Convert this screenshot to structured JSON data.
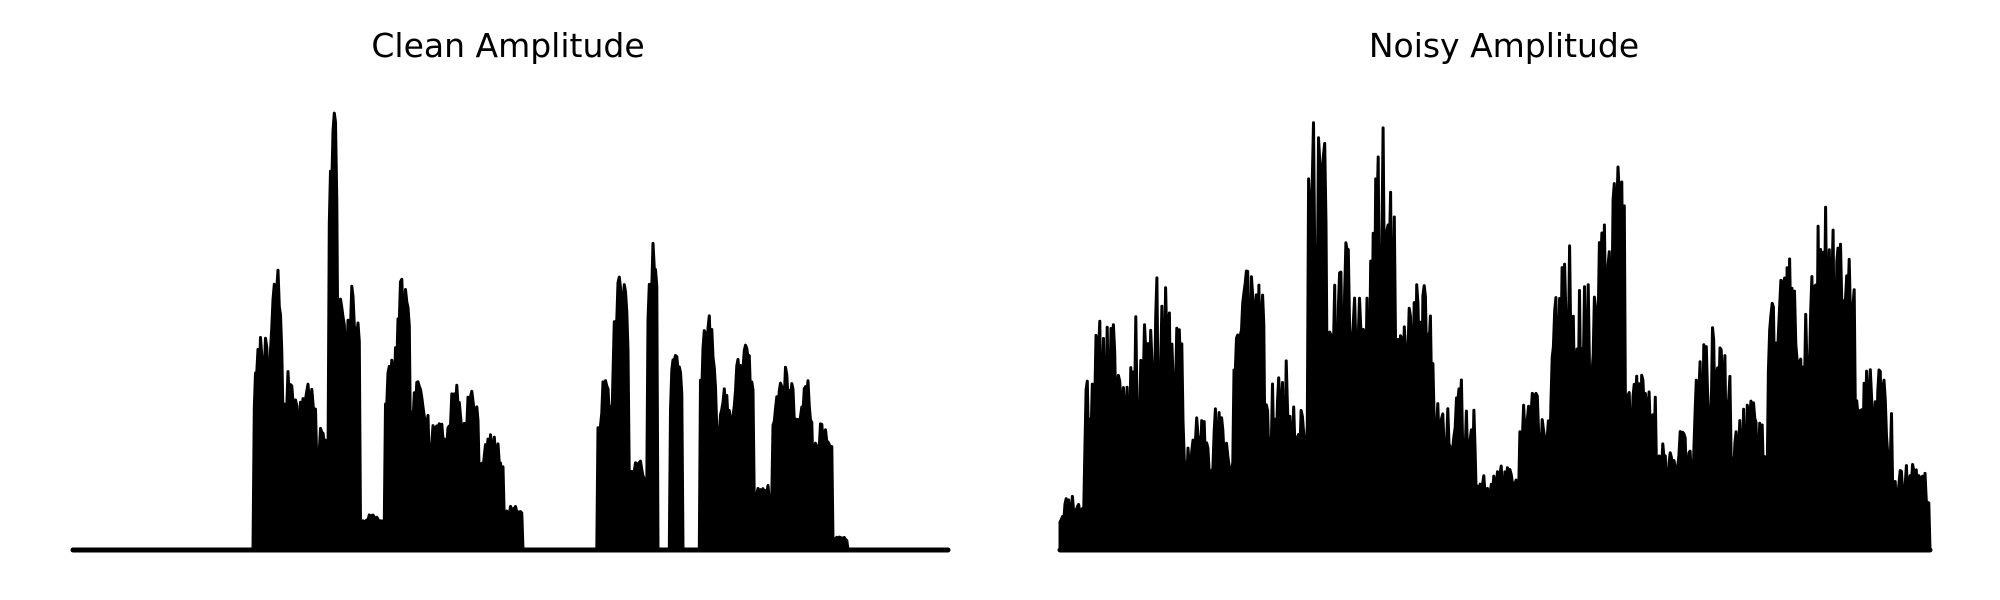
{
  "chart_data": [
    {
      "type": "area",
      "title": "Clean Amplitude",
      "xlabel": "",
      "ylabel": "",
      "axes": "off",
      "grid": false,
      "color": "#000000",
      "ylim": [
        0,
        1.0
      ],
      "n_samples": 700,
      "segments": [
        {
          "start": 0,
          "end": 145,
          "level": 0.0
        },
        {
          "start": 145,
          "end": 158,
          "level": 0.48
        },
        {
          "start": 158,
          "end": 168,
          "level": 0.63
        },
        {
          "start": 168,
          "end": 180,
          "level": 0.4
        },
        {
          "start": 180,
          "end": 195,
          "level": 0.38
        },
        {
          "start": 195,
          "end": 205,
          "level": 0.28
        },
        {
          "start": 205,
          "end": 212,
          "level": 1.0
        },
        {
          "start": 212,
          "end": 218,
          "level": 0.58
        },
        {
          "start": 218,
          "end": 230,
          "level": 0.58
        },
        {
          "start": 230,
          "end": 250,
          "level": 0.08
        },
        {
          "start": 250,
          "end": 258,
          "level": 0.44
        },
        {
          "start": 258,
          "end": 270,
          "level": 0.6
        },
        {
          "start": 270,
          "end": 285,
          "level": 0.38
        },
        {
          "start": 285,
          "end": 300,
          "level": 0.3
        },
        {
          "start": 300,
          "end": 312,
          "level": 0.37
        },
        {
          "start": 312,
          "end": 325,
          "level": 0.36
        },
        {
          "start": 325,
          "end": 345,
          "level": 0.25
        },
        {
          "start": 345,
          "end": 360,
          "level": 0.1
        },
        {
          "start": 360,
          "end": 420,
          "level": 0.0
        },
        {
          "start": 420,
          "end": 432,
          "level": 0.38
        },
        {
          "start": 432,
          "end": 445,
          "level": 0.62
        },
        {
          "start": 445,
          "end": 460,
          "level": 0.2
        },
        {
          "start": 460,
          "end": 468,
          "level": 0.7
        },
        {
          "start": 468,
          "end": 478,
          "level": 0.0
        },
        {
          "start": 478,
          "end": 488,
          "level": 0.48
        },
        {
          "start": 488,
          "end": 502,
          "level": 0.0
        },
        {
          "start": 502,
          "end": 515,
          "level": 0.52
        },
        {
          "start": 515,
          "end": 528,
          "level": 0.36
        },
        {
          "start": 528,
          "end": 545,
          "level": 0.46
        },
        {
          "start": 545,
          "end": 560,
          "level": 0.15
        },
        {
          "start": 560,
          "end": 580,
          "level": 0.4
        },
        {
          "start": 580,
          "end": 592,
          "level": 0.38
        },
        {
          "start": 592,
          "end": 608,
          "level": 0.28
        },
        {
          "start": 608,
          "end": 620,
          "level": 0.03
        },
        {
          "start": 620,
          "end": 700,
          "level": 0.0
        }
      ]
    },
    {
      "type": "area",
      "title": "Noisy Amplitude",
      "xlabel": "",
      "ylabel": "",
      "axes": "off",
      "grid": false,
      "color": "#000000",
      "ylim": [
        0,
        1.0
      ],
      "n_samples": 700,
      "segments": [
        {
          "start": 0,
          "end": 20,
          "level": 0.12
        },
        {
          "start": 20,
          "end": 55,
          "level": 0.48
        },
        {
          "start": 55,
          "end": 100,
          "level": 0.55
        },
        {
          "start": 100,
          "end": 140,
          "level": 0.3
        },
        {
          "start": 140,
          "end": 165,
          "level": 0.64
        },
        {
          "start": 165,
          "end": 200,
          "level": 0.38
        },
        {
          "start": 200,
          "end": 215,
          "level": 1.0
        },
        {
          "start": 215,
          "end": 250,
          "level": 0.62
        },
        {
          "start": 250,
          "end": 270,
          "level": 0.85
        },
        {
          "start": 270,
          "end": 305,
          "level": 0.55
        },
        {
          "start": 305,
          "end": 335,
          "level": 0.35
        },
        {
          "start": 335,
          "end": 370,
          "level": 0.18
        },
        {
          "start": 370,
          "end": 395,
          "level": 0.35
        },
        {
          "start": 395,
          "end": 430,
          "level": 0.62
        },
        {
          "start": 430,
          "end": 455,
          "level": 0.9
        },
        {
          "start": 455,
          "end": 480,
          "level": 0.4
        },
        {
          "start": 480,
          "end": 510,
          "level": 0.25
        },
        {
          "start": 510,
          "end": 540,
          "level": 0.45
        },
        {
          "start": 540,
          "end": 570,
          "level": 0.3
        },
        {
          "start": 570,
          "end": 600,
          "level": 0.6
        },
        {
          "start": 600,
          "end": 640,
          "level": 0.7
        },
        {
          "start": 640,
          "end": 670,
          "level": 0.4
        },
        {
          "start": 670,
          "end": 700,
          "level": 0.18
        }
      ]
    }
  ]
}
